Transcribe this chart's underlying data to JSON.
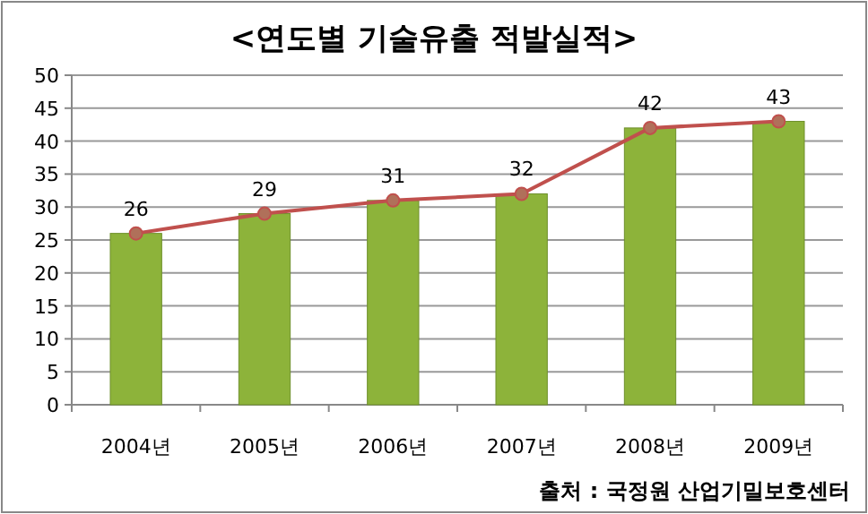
{
  "chart_data": {
    "type": "bar",
    "title": "<연도별 기술유출 적발실적>",
    "categories": [
      "2004년",
      "2005년",
      "2006년",
      "2007년",
      "2008년",
      "2009년"
    ],
    "series": [
      {
        "color": "#8db33a",
        "values": [
          26,
          29,
          31,
          32,
          42,
          43
        ]
      },
      {
        "type": "line",
        "color": "#c0504d",
        "marker": "circle",
        "values": [
          26,
          29,
          31,
          32,
          42,
          43
        ],
        "value_labels": [
          "26",
          "29",
          "31",
          "32",
          "42",
          "43"
        ]
      }
    ],
    "ylim": [
      0,
      50
    ],
    "yticks": [
      0,
      5,
      10,
      15,
      20,
      25,
      30,
      35,
      40,
      45,
      50
    ],
    "grid": "y",
    "annotations": [
      "출처 : 국정원 산업기밀보호센터"
    ]
  }
}
